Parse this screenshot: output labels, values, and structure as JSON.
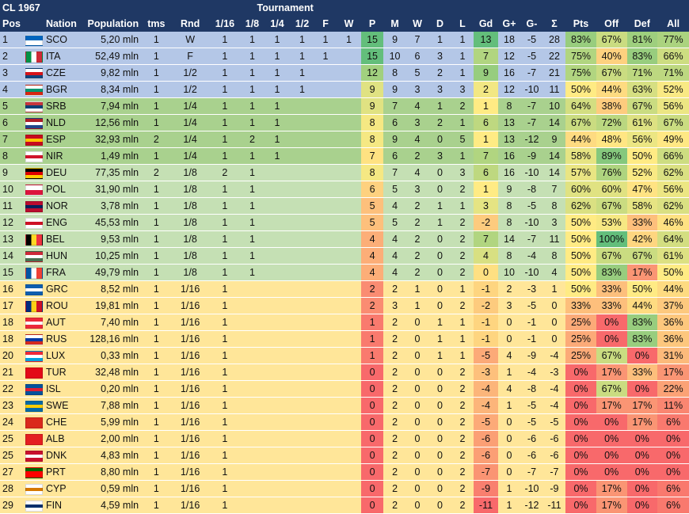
{
  "header": {
    "title": "CL 1967",
    "group": "Tournament",
    "cols": [
      "Pos",
      "Nation",
      "Population",
      "tms",
      "Rnd",
      "1/16",
      "1/8",
      "1/4",
      "1/2",
      "F",
      "W",
      "P",
      "M",
      "W",
      "D",
      "L",
      "Gd",
      "G+",
      "G-",
      "Σ",
      "Pts",
      "Off",
      "Def",
      "All"
    ]
  },
  "rows": [
    {
      "pos": "1",
      "nation": "SCO",
      "pop": "5,20 mln",
      "tms": "1",
      "rnd": "W",
      "t": [
        "1",
        "1",
        "1",
        "1",
        "1",
        "1"
      ],
      "p": "15",
      "m": "9",
      "w": "7",
      "d": "1",
      "l": "1",
      "gd": "13",
      "gp": "18",
      "gm": "-5",
      "s": "28",
      "pts": "83%",
      "off": "67%",
      "def": "81%",
      "all": "77%",
      "band": "#b4c7e7",
      "flag": [
        "#0065bd",
        "#fff"
      ]
    },
    {
      "pos": "2",
      "nation": "ITA",
      "pop": "52,49 mln",
      "tms": "1",
      "rnd": "F",
      "t": [
        "1",
        "1",
        "1",
        "1",
        "1",
        ""
      ],
      "p": "15",
      "m": "10",
      "w": "6",
      "d": "3",
      "l": "1",
      "gd": "7",
      "gp": "12",
      "gm": "-5",
      "s": "22",
      "pts": "75%",
      "off": "40%",
      "def": "83%",
      "all": "66%",
      "band": "#b4c7e7",
      "flag": [
        "#009246",
        "#fff",
        "#ce2b37"
      ]
    },
    {
      "pos": "3",
      "nation": "CZE",
      "pop": "9,82 mln",
      "tms": "1",
      "rnd": "1/2",
      "t": [
        "1",
        "1",
        "1",
        "1",
        "",
        ""
      ],
      "p": "12",
      "m": "8",
      "w": "5",
      "d": "2",
      "l": "1",
      "gd": "9",
      "gp": "16",
      "gm": "-7",
      "s": "21",
      "pts": "75%",
      "off": "67%",
      "def": "71%",
      "all": "71%",
      "band": "#b4c7e7",
      "flag": [
        "#fff",
        "#d7141a",
        "#11457e"
      ]
    },
    {
      "pos": "4",
      "nation": "BGR",
      "pop": "8,34 mln",
      "tms": "1",
      "rnd": "1/2",
      "t": [
        "1",
        "1",
        "1",
        "1",
        "",
        ""
      ],
      "p": "9",
      "m": "9",
      "w": "3",
      "d": "3",
      "l": "3",
      "gd": "2",
      "gp": "12",
      "gm": "-10",
      "s": "11",
      "pts": "50%",
      "off": "44%",
      "def": "63%",
      "all": "52%",
      "band": "#b4c7e7",
      "flag": [
        "#fff",
        "#00966e",
        "#d62612"
      ]
    },
    {
      "pos": "5",
      "nation": "SRB",
      "pop": "7,94 mln",
      "tms": "1",
      "rnd": "1/4",
      "t": [
        "1",
        "1",
        "1",
        "",
        "",
        ""
      ],
      "p": "9",
      "m": "7",
      "w": "4",
      "d": "1",
      "l": "2",
      "gd": "1",
      "gp": "8",
      "gm": "-7",
      "s": "10",
      "pts": "64%",
      "off": "38%",
      "def": "67%",
      "all": "56%",
      "band": "#a9d18e",
      "flag": [
        "#c6363c",
        "#0c4076",
        "#fff"
      ]
    },
    {
      "pos": "6",
      "nation": "NLD",
      "pop": "12,56 mln",
      "tms": "1",
      "rnd": "1/4",
      "t": [
        "1",
        "1",
        "1",
        "",
        "",
        ""
      ],
      "p": "8",
      "m": "6",
      "w": "3",
      "d": "2",
      "l": "1",
      "gd": "6",
      "gp": "13",
      "gm": "-7",
      "s": "14",
      "pts": "67%",
      "off": "72%",
      "def": "61%",
      "all": "67%",
      "band": "#a9d18e",
      "flag": [
        "#ae1c28",
        "#fff",
        "#21468b"
      ]
    },
    {
      "pos": "7",
      "nation": "ESP",
      "pop": "32,93 mln",
      "tms": "2",
      "rnd": "1/4",
      "t": [
        "1",
        "2",
        "1",
        "",
        "",
        ""
      ],
      "p": "8",
      "m": "9",
      "w": "4",
      "d": "0",
      "l": "5",
      "gd": "1",
      "gp": "13",
      "gm": "-12",
      "s": "9",
      "pts": "44%",
      "off": "48%",
      "def": "56%",
      "all": "49%",
      "band": "#a9d18e",
      "flag": [
        "#c60b1e",
        "#ffc400",
        "#c60b1e"
      ]
    },
    {
      "pos": "8",
      "nation": "NIR",
      "pop": "1,49 mln",
      "tms": "1",
      "rnd": "1/4",
      "t": [
        "1",
        "1",
        "1",
        "",
        "",
        ""
      ],
      "p": "7",
      "m": "6",
      "w": "2",
      "d": "3",
      "l": "1",
      "gd": "7",
      "gp": "16",
      "gm": "-9",
      "s": "14",
      "pts": "58%",
      "off": "89%",
      "def": "50%",
      "all": "66%",
      "band": "#a9d18e",
      "flag": [
        "#fff",
        "#cf142b",
        "#fff"
      ]
    },
    {
      "pos": "9",
      "nation": "DEU",
      "pop": "77,35 mln",
      "tms": "2",
      "rnd": "1/8",
      "t": [
        "2",
        "1",
        "",
        "",
        "",
        ""
      ],
      "p": "8",
      "m": "7",
      "w": "4",
      "d": "0",
      "l": "3",
      "gd": "6",
      "gp": "16",
      "gm": "-10",
      "s": "14",
      "pts": "57%",
      "off": "76%",
      "def": "52%",
      "all": "62%",
      "band": "#c5e0b4",
      "flag": [
        "#000",
        "#dd0000",
        "#ffce00"
      ]
    },
    {
      "pos": "10",
      "nation": "POL",
      "pop": "31,90 mln",
      "tms": "1",
      "rnd": "1/8",
      "t": [
        "1",
        "1",
        "",
        "",
        "",
        ""
      ],
      "p": "6",
      "m": "5",
      "w": "3",
      "d": "0",
      "l": "2",
      "gd": "1",
      "gp": "9",
      "gm": "-8",
      "s": "7",
      "pts": "60%",
      "off": "60%",
      "def": "47%",
      "all": "56%",
      "band": "#c5e0b4",
      "flag": [
        "#fff",
        "#dc143c"
      ]
    },
    {
      "pos": "11",
      "nation": "NOR",
      "pop": "3,78 mln",
      "tms": "1",
      "rnd": "1/8",
      "t": [
        "1",
        "1",
        "",
        "",
        "",
        ""
      ],
      "p": "5",
      "m": "4",
      "w": "2",
      "d": "1",
      "l": "1",
      "gd": "3",
      "gp": "8",
      "gm": "-5",
      "s": "8",
      "pts": "62%",
      "off": "67%",
      "def": "58%",
      "all": "62%",
      "band": "#c5e0b4",
      "flag": [
        "#ba0c2f",
        "#00205b",
        "#ba0c2f"
      ]
    },
    {
      "pos": "12",
      "nation": "ENG",
      "pop": "45,53 mln",
      "tms": "1",
      "rnd": "1/8",
      "t": [
        "1",
        "1",
        "",
        "",
        "",
        ""
      ],
      "p": "5",
      "m": "5",
      "w": "2",
      "d": "1",
      "l": "2",
      "gd": "-2",
      "gp": "8",
      "gm": "-10",
      "s": "3",
      "pts": "50%",
      "off": "53%",
      "def": "33%",
      "all": "46%",
      "band": "#c5e0b4",
      "flag": [
        "#fff",
        "#ce1124",
        "#fff"
      ]
    },
    {
      "pos": "13",
      "nation": "BEL",
      "pop": "9,53 mln",
      "tms": "1",
      "rnd": "1/8",
      "t": [
        "1",
        "1",
        "",
        "",
        "",
        ""
      ],
      "p": "4",
      "m": "4",
      "w": "2",
      "d": "0",
      "l": "2",
      "gd": "7",
      "gp": "14",
      "gm": "-7",
      "s": "11",
      "pts": "50%",
      "off": "100%",
      "def": "42%",
      "all": "64%",
      "band": "#c5e0b4",
      "flag": [
        "#000",
        "#fdda24",
        "#ef3340"
      ]
    },
    {
      "pos": "14",
      "nation": "HUN",
      "pop": "10,25 mln",
      "tms": "1",
      "rnd": "1/8",
      "t": [
        "1",
        "1",
        "",
        "",
        "",
        ""
      ],
      "p": "4",
      "m": "4",
      "w": "2",
      "d": "0",
      "l": "2",
      "gd": "4",
      "gp": "8",
      "gm": "-4",
      "s": "8",
      "pts": "50%",
      "off": "67%",
      "def": "67%",
      "all": "61%",
      "band": "#c5e0b4",
      "flag": [
        "#ce2939",
        "#fff",
        "#477050"
      ]
    },
    {
      "pos": "15",
      "nation": "FRA",
      "pop": "49,79 mln",
      "tms": "1",
      "rnd": "1/8",
      "t": [
        "1",
        "1",
        "",
        "",
        "",
        ""
      ],
      "p": "4",
      "m": "4",
      "w": "2",
      "d": "0",
      "l": "2",
      "gd": "0",
      "gp": "10",
      "gm": "-10",
      "s": "4",
      "pts": "50%",
      "off": "83%",
      "def": "17%",
      "all": "50%",
      "band": "#c5e0b4",
      "flag": [
        "#0055a4",
        "#fff",
        "#ef4135"
      ]
    },
    {
      "pos": "16",
      "nation": "GRC",
      "pop": "8,52 mln",
      "tms": "1",
      "rnd": "1/16",
      "t": [
        "1",
        "",
        "",
        "",
        "",
        ""
      ],
      "p": "2",
      "m": "2",
      "w": "1",
      "d": "0",
      "l": "1",
      "gd": "-1",
      "gp": "2",
      "gm": "-3",
      "s": "1",
      "pts": "50%",
      "off": "33%",
      "def": "50%",
      "all": "44%",
      "band": "#ffe699",
      "flag": [
        "#0d5eaf",
        "#fff",
        "#0d5eaf"
      ]
    },
    {
      "pos": "17",
      "nation": "ROU",
      "pop": "19,81 mln",
      "tms": "1",
      "rnd": "1/16",
      "t": [
        "1",
        "",
        "",
        "",
        "",
        ""
      ],
      "p": "2",
      "m": "3",
      "w": "1",
      "d": "0",
      "l": "2",
      "gd": "-2",
      "gp": "3",
      "gm": "-5",
      "s": "0",
      "pts": "33%",
      "off": "33%",
      "def": "44%",
      "all": "37%",
      "band": "#ffe699",
      "flag": [
        "#002b7f",
        "#fcd116",
        "#ce1126"
      ]
    },
    {
      "pos": "18",
      "nation": "AUT",
      "pop": "7,40 mln",
      "tms": "1",
      "rnd": "1/16",
      "t": [
        "1",
        "",
        "",
        "",
        "",
        ""
      ],
      "p": "1",
      "m": "2",
      "w": "0",
      "d": "1",
      "l": "1",
      "gd": "-1",
      "gp": "0",
      "gm": "-1",
      "s": "0",
      "pts": "25%",
      "off": "0%",
      "def": "83%",
      "all": "36%",
      "band": "#ffe699",
      "flag": [
        "#ed2939",
        "#fff",
        "#ed2939"
      ]
    },
    {
      "pos": "18",
      "nation": "RUS",
      "pop": "128,16 mln",
      "tms": "1",
      "rnd": "1/16",
      "t": [
        "1",
        "",
        "",
        "",
        "",
        ""
      ],
      "p": "1",
      "m": "2",
      "w": "0",
      "d": "1",
      "l": "1",
      "gd": "-1",
      "gp": "0",
      "gm": "-1",
      "s": "0",
      "pts": "25%",
      "off": "0%",
      "def": "83%",
      "all": "36%",
      "band": "#ffe699",
      "flag": [
        "#fff",
        "#0039a6",
        "#d52b1e"
      ]
    },
    {
      "pos": "20",
      "nation": "LUX",
      "pop": "0,33 mln",
      "tms": "1",
      "rnd": "1/16",
      "t": [
        "1",
        "",
        "",
        "",
        "",
        ""
      ],
      "p": "1",
      "m": "2",
      "w": "0",
      "d": "1",
      "l": "1",
      "gd": "-5",
      "gp": "4",
      "gm": "-9",
      "s": "-4",
      "pts": "25%",
      "off": "67%",
      "def": "0%",
      "all": "31%",
      "band": "#ffe699",
      "flag": [
        "#ed2939",
        "#fff",
        "#00a1de"
      ]
    },
    {
      "pos": "21",
      "nation": "TUR",
      "pop": "32,48 mln",
      "tms": "1",
      "rnd": "1/16",
      "t": [
        "1",
        "",
        "",
        "",
        "",
        ""
      ],
      "p": "0",
      "m": "2",
      "w": "0",
      "d": "0",
      "l": "2",
      "gd": "-3",
      "gp": "1",
      "gm": "-4",
      "s": "-3",
      "pts": "0%",
      "off": "17%",
      "def": "33%",
      "all": "17%",
      "band": "#ffe699",
      "flag": [
        "#e30a17",
        "#e30a17"
      ]
    },
    {
      "pos": "22",
      "nation": "ISL",
      "pop": "0,20 mln",
      "tms": "1",
      "rnd": "1/16",
      "t": [
        "1",
        "",
        "",
        "",
        "",
        ""
      ],
      "p": "0",
      "m": "2",
      "w": "0",
      "d": "0",
      "l": "2",
      "gd": "-4",
      "gp": "4",
      "gm": "-8",
      "s": "-4",
      "pts": "0%",
      "off": "67%",
      "def": "0%",
      "all": "22%",
      "band": "#ffe699",
      "flag": [
        "#02529c",
        "#dc1e35",
        "#02529c"
      ]
    },
    {
      "pos": "23",
      "nation": "SWE",
      "pop": "7,88 mln",
      "tms": "1",
      "rnd": "1/16",
      "t": [
        "1",
        "",
        "",
        "",
        "",
        ""
      ],
      "p": "0",
      "m": "2",
      "w": "0",
      "d": "0",
      "l": "2",
      "gd": "-4",
      "gp": "1",
      "gm": "-5",
      "s": "-4",
      "pts": "0%",
      "off": "17%",
      "def": "17%",
      "all": "11%",
      "band": "#ffe699",
      "flag": [
        "#006aa7",
        "#fecc00",
        "#006aa7"
      ]
    },
    {
      "pos": "24",
      "nation": "CHE",
      "pop": "5,99 mln",
      "tms": "1",
      "rnd": "1/16",
      "t": [
        "1",
        "",
        "",
        "",
        "",
        ""
      ],
      "p": "0",
      "m": "2",
      "w": "0",
      "d": "0",
      "l": "2",
      "gd": "-5",
      "gp": "0",
      "gm": "-5",
      "s": "-5",
      "pts": "0%",
      "off": "0%",
      "def": "17%",
      "all": "6%",
      "band": "#ffe699",
      "flag": [
        "#da291c",
        "#da291c"
      ]
    },
    {
      "pos": "25",
      "nation": "ALB",
      "pop": "2,00 mln",
      "tms": "1",
      "rnd": "1/16",
      "t": [
        "1",
        "",
        "",
        "",
        "",
        ""
      ],
      "p": "0",
      "m": "2",
      "w": "0",
      "d": "0",
      "l": "2",
      "gd": "-6",
      "gp": "0",
      "gm": "-6",
      "s": "-6",
      "pts": "0%",
      "off": "0%",
      "def": "0%",
      "all": "0%",
      "band": "#ffe699",
      "flag": [
        "#e41e20",
        "#e41e20"
      ]
    },
    {
      "pos": "25",
      "nation": "DNK",
      "pop": "4,83 mln",
      "tms": "1",
      "rnd": "1/16",
      "t": [
        "1",
        "",
        "",
        "",
        "",
        ""
      ],
      "p": "0",
      "m": "2",
      "w": "0",
      "d": "0",
      "l": "2",
      "gd": "-6",
      "gp": "0",
      "gm": "-6",
      "s": "-6",
      "pts": "0%",
      "off": "0%",
      "def": "0%",
      "all": "0%",
      "band": "#ffe699",
      "flag": [
        "#c8102e",
        "#fff",
        "#c8102e"
      ]
    },
    {
      "pos": "27",
      "nation": "PRT",
      "pop": "8,80 mln",
      "tms": "1",
      "rnd": "1/16",
      "t": [
        "1",
        "",
        "",
        "",
        "",
        ""
      ],
      "p": "0",
      "m": "2",
      "w": "0",
      "d": "0",
      "l": "2",
      "gd": "-7",
      "gp": "0",
      "gm": "-7",
      "s": "-7",
      "pts": "0%",
      "off": "0%",
      "def": "0%",
      "all": "0%",
      "band": "#ffe699",
      "flag": [
        "#006600",
        "#ff0000",
        "#ff0000"
      ]
    },
    {
      "pos": "28",
      "nation": "CYP",
      "pop": "0,59 mln",
      "tms": "1",
      "rnd": "1/16",
      "t": [
        "1",
        "",
        "",
        "",
        "",
        ""
      ],
      "p": "0",
      "m": "2",
      "w": "0",
      "d": "0",
      "l": "2",
      "gd": "-9",
      "gp": "1",
      "gm": "-10",
      "s": "-9",
      "pts": "0%",
      "off": "17%",
      "def": "0%",
      "all": "6%",
      "band": "#ffe699",
      "flag": [
        "#fff",
        "#d57800",
        "#fff"
      ]
    },
    {
      "pos": "29",
      "nation": "FIN",
      "pop": "4,59 mln",
      "tms": "1",
      "rnd": "1/16",
      "t": [
        "1",
        "",
        "",
        "",
        "",
        ""
      ],
      "p": "0",
      "m": "2",
      "w": "0",
      "d": "0",
      "l": "2",
      "gd": "-11",
      "gp": "1",
      "gm": "-12",
      "s": "-11",
      "pts": "0%",
      "off": "17%",
      "def": "0%",
      "all": "6%",
      "band": "#ffe699",
      "flag": [
        "#fff",
        "#002f6c",
        "#fff"
      ]
    }
  ]
}
